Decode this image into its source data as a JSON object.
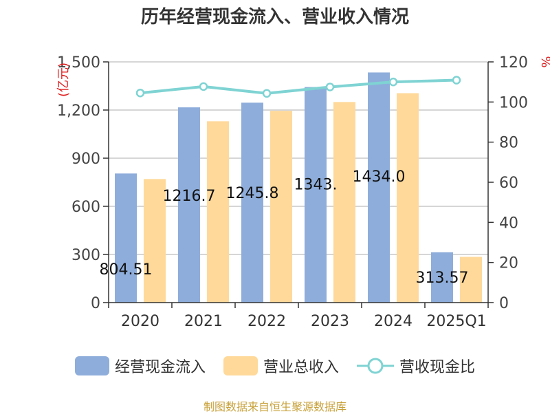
{
  "title": "历年经营现金流入、营业收入情况",
  "footer": "制图数据来自恒生聚源数据库",
  "colors": {
    "cash_inflow": "#8eaddb",
    "revenue": "#ffd99a",
    "ratio_line": "#7fd3d3",
    "unit_label": "#e02020",
    "grid": "#c8c8c8",
    "axis": "#333333"
  },
  "chart_data": {
    "type": "bar",
    "title": "历年经营现金流入、营业收入情况",
    "categories": [
      "2020",
      "2021",
      "2022",
      "2023",
      "2024",
      "2025Q1"
    ],
    "y_left": {
      "unit": "(亿元)",
      "ylim": [
        0,
        1500
      ],
      "ticks": [
        0,
        300,
        600,
        900,
        1200,
        1500
      ],
      "tick_labels": [
        "0",
        "300",
        "600",
        "900",
        "1,200",
        "1,500"
      ]
    },
    "y_right": {
      "unit": "%",
      "ylim": [
        0,
        120
      ],
      "ticks": [
        0,
        20,
        40,
        60,
        80,
        100,
        120
      ]
    },
    "series": [
      {
        "name": "经营现金流入",
        "kind": "bar",
        "axis": "left",
        "values": [
          804.51,
          1216.7,
          1245.8,
          1343.3,
          1434.0,
          313.57
        ],
        "labels": [
          "804.51",
          "1216.7",
          "1245.8",
          "1343.",
          "1434.0",
          "313.57"
        ]
      },
      {
        "name": "营业总收入",
        "kind": "bar",
        "axis": "left",
        "values": [
          770,
          1130,
          1195,
          1250,
          1305,
          285
        ]
      },
      {
        "name": "营收现金比",
        "kind": "line",
        "axis": "right",
        "values": [
          104.5,
          107.7,
          104.3,
          107.5,
          110.0,
          110.9
        ]
      }
    ],
    "grid": true,
    "legend": "bottom"
  }
}
